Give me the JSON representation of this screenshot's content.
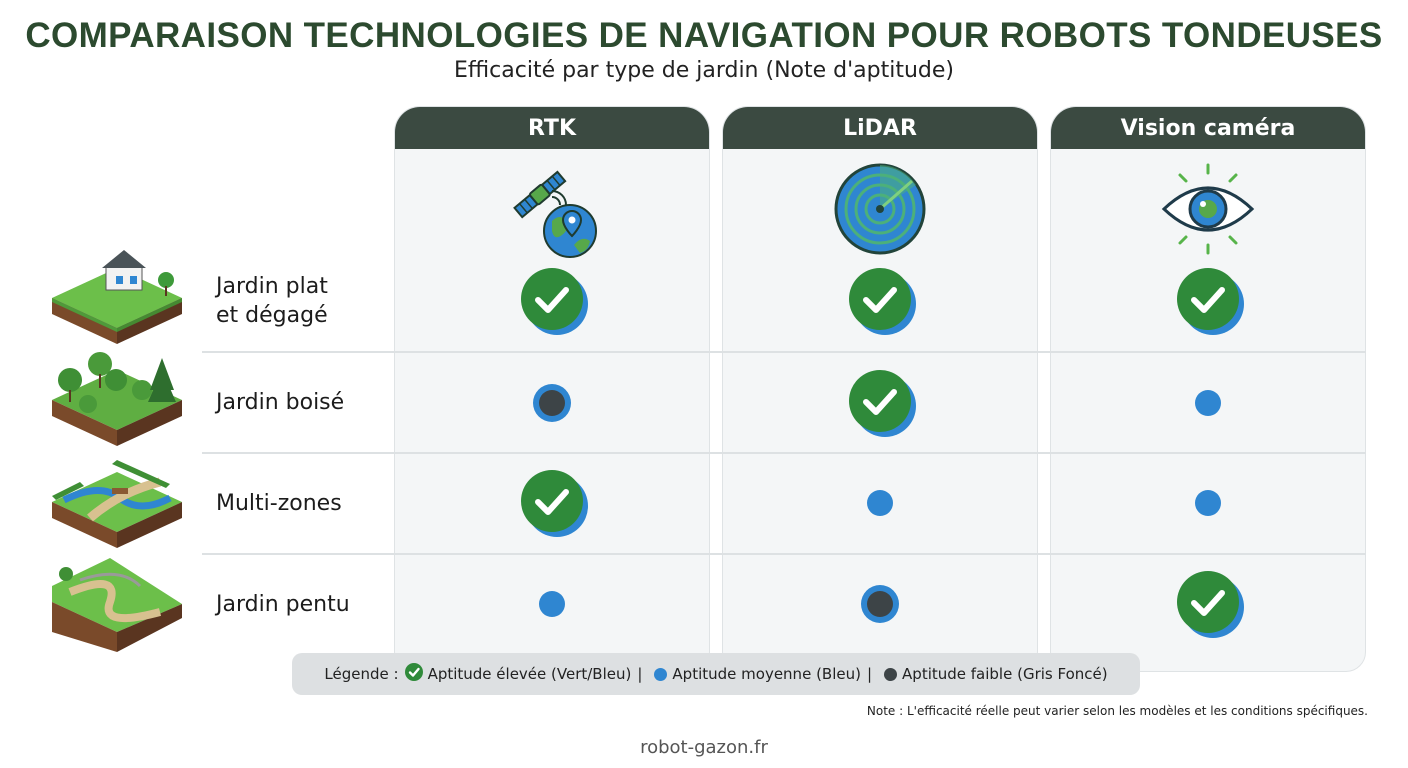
{
  "title": "COMPARAISON TECHNOLOGIES DE NAVIGATION POUR ROBOTS TONDEUSES",
  "subtitle": "Efficacité par type de jardin (Note d'aptitude)",
  "columns": [
    {
      "label": "RTK",
      "icon": "satellite-globe-icon"
    },
    {
      "label": "LiDAR",
      "icon": "radar-icon"
    },
    {
      "label": "Vision caméra",
      "icon": "eye-icon"
    }
  ],
  "rows": [
    {
      "label_line1": "Jardin plat",
      "label_line2": "et dégagé",
      "thumb": "flat-garden-house-icon",
      "ratings": [
        "high",
        "high",
        "high"
      ]
    },
    {
      "label_line1": "Jardin boisé",
      "label_line2": "",
      "thumb": "wooded-garden-icon",
      "ratings": [
        "low",
        "high",
        "medium"
      ]
    },
    {
      "label_line1": "Multi-zones",
      "label_line2": "",
      "thumb": "multi-zone-garden-icon",
      "ratings": [
        "high",
        "medium",
        "medium"
      ]
    },
    {
      "label_line1": "Jardin pentu",
      "label_line2": "",
      "thumb": "sloped-garden-icon",
      "ratings": [
        "medium",
        "low",
        "high"
      ]
    }
  ],
  "legend": {
    "prefix": "Légende :",
    "high": "Aptitude élevée (Vert/Bleu)",
    "sep1": "|",
    "medium": "Aptitude moyenne (Bleu)",
    "sep2": "|",
    "low": "Aptitude faible (Gris Foncé)"
  },
  "colors": {
    "high": "#2f8a3a",
    "medium": "#2f86d1",
    "low": "#3d4447",
    "header": "#3b4a41",
    "title": "#2c4a2f"
  },
  "note": "Note : L'efficacité réelle peut varier selon les modèles et les conditions spécifiques.",
  "footer": "robot-gazon.fr"
}
